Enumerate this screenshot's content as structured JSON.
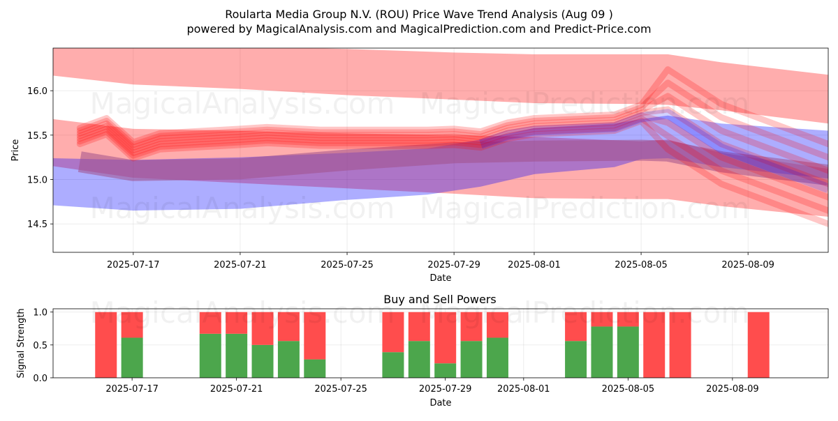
{
  "title_line1": "Roularta Media Group N.V. (ROU) Price Wave Trend Analysis (Aug 09 )",
  "title_line2": "powered by MagicalAnalysis.com and MagicalPrediction.com and Predict-Price.com",
  "watermarks": [
    "MagicalAnalysis.com",
    "MagicalPrediction.com"
  ],
  "colors": {
    "red_band": "#ff0000",
    "blue_band": "#0000ff",
    "buy": "#4ca64c",
    "sell": "#ff4d4d"
  },
  "chart_data": [
    {
      "type": "area",
      "xlabel": "Date",
      "ylabel": "Price",
      "x_ticks": [
        "2025-07-17",
        "2025-07-21",
        "2025-07-25",
        "2025-07-29",
        "2025-08-01",
        "2025-08-05",
        "2025-08-09"
      ],
      "y_ticks": [
        "14.5",
        "15.0",
        "15.5",
        "16.0"
      ],
      "xlim": [
        "2025-07-14",
        "2025-08-12"
      ],
      "ylim": [
        14.18,
        16.48
      ],
      "grid": true,
      "bands": [
        {
          "color": "red",
          "opacity": 0.32,
          "x": [
            "2025-07-14",
            "2025-07-17",
            "2025-07-21",
            "2025-07-25",
            "2025-07-29",
            "2025-08-01",
            "2025-08-05",
            "2025-08-06",
            "2025-08-08",
            "2025-08-12"
          ],
          "upper": [
            16.55,
            16.52,
            16.5,
            16.47,
            16.43,
            16.41,
            16.41,
            16.41,
            16.32,
            16.18
          ],
          "lower": [
            16.17,
            16.07,
            16.02,
            15.95,
            15.9,
            15.86,
            15.85,
            15.84,
            15.78,
            15.63
          ]
        },
        {
          "color": "red",
          "opacity": 0.32,
          "x": [
            "2025-07-14",
            "2025-07-17",
            "2025-07-21",
            "2025-07-25",
            "2025-07-29",
            "2025-08-01",
            "2025-08-05",
            "2025-08-06",
            "2025-08-08",
            "2025-08-12"
          ],
          "upper": [
            15.68,
            15.57,
            15.55,
            15.52,
            15.5,
            15.48,
            15.43,
            15.45,
            15.3,
            15.12
          ],
          "lower": [
            15.15,
            15.02,
            14.96,
            14.9,
            14.84,
            14.79,
            14.78,
            14.78,
            14.7,
            14.58
          ]
        },
        {
          "color": "blue",
          "opacity": 0.32,
          "x": [
            "2025-07-14",
            "2025-07-17",
            "2025-07-21",
            "2025-07-25",
            "2025-07-28",
            "2025-07-30",
            "2025-08-01",
            "2025-08-04",
            "2025-08-05",
            "2025-08-06",
            "2025-08-08",
            "2025-08-12"
          ],
          "upper": [
            15.24,
            15.22,
            15.25,
            15.3,
            15.35,
            15.45,
            15.58,
            15.63,
            15.68,
            15.72,
            15.63,
            15.55
          ],
          "lower": [
            14.71,
            14.65,
            14.67,
            14.77,
            14.83,
            14.92,
            15.06,
            15.14,
            15.23,
            15.24,
            15.14,
            15.01
          ]
        }
      ],
      "trend_lines": {
        "x": [
          "2025-07-15",
          "2025-07-16",
          "2025-07-17",
          "2025-07-18",
          "2025-07-21",
          "2025-07-22",
          "2025-07-24",
          "2025-07-25",
          "2025-07-28",
          "2025-07-29",
          "2025-07-30",
          "2025-07-31",
          "2025-08-01",
          "2025-08-04",
          "2025-08-05",
          "2025-08-06",
          "2025-08-08",
          "2025-08-12"
        ],
        "y": [
          15.49,
          15.6,
          15.33,
          15.43,
          15.48,
          15.5,
          15.47,
          15.47,
          15.47,
          15.48,
          15.45,
          15.55,
          15.6,
          15.64,
          15.75,
          15.79,
          15.4,
          14.95
        ]
      },
      "mid_band": {
        "x": [
          "2025-07-15",
          "2025-07-17",
          "2025-07-21",
          "2025-07-25",
          "2025-07-29",
          "2025-08-01",
          "2025-08-05",
          "2025-08-06",
          "2025-08-08",
          "2025-08-12"
        ],
        "y": [
          15.2,
          15.1,
          15.12,
          15.22,
          15.3,
          15.32,
          15.33,
          15.32,
          15.2,
          15.05
        ]
      }
    },
    {
      "type": "bar",
      "title": "Buy and Sell Powers",
      "xlabel": "Date",
      "ylabel": "Signal Strength",
      "x_ticks": [
        "2025-07-17",
        "2025-07-21",
        "2025-07-25",
        "2025-07-29",
        "2025-08-01",
        "2025-08-05",
        "2025-08-09"
      ],
      "y_ticks": [
        "0.0",
        "0.5",
        "1.0"
      ],
      "ylim": [
        0,
        1.05
      ],
      "grid": true,
      "series": [
        {
          "name": "Buy",
          "color": "green"
        },
        {
          "name": "Sell",
          "color": "red"
        }
      ],
      "categories": [
        "2025-07-16",
        "2025-07-17",
        "2025-07-20",
        "2025-07-21",
        "2025-07-22",
        "2025-07-23",
        "2025-07-24",
        "2025-07-27",
        "2025-07-28",
        "2025-07-29",
        "2025-07-30",
        "2025-07-31",
        "2025-08-03",
        "2025-08-04",
        "2025-08-05",
        "2025-08-06",
        "2025-08-07",
        "2025-08-10"
      ],
      "buy": [
        0.0,
        0.61,
        0.67,
        0.67,
        0.5,
        0.56,
        0.28,
        0.39,
        0.56,
        0.22,
        0.56,
        0.61,
        0.56,
        0.78,
        0.78,
        0.0,
        0.0,
        0.0
      ],
      "sell": [
        1.0,
        0.39,
        0.33,
        0.33,
        0.5,
        0.44,
        0.72,
        0.61,
        0.44,
        0.78,
        0.44,
        0.39,
        0.44,
        0.22,
        0.22,
        1.0,
        1.0,
        1.0
      ]
    }
  ]
}
